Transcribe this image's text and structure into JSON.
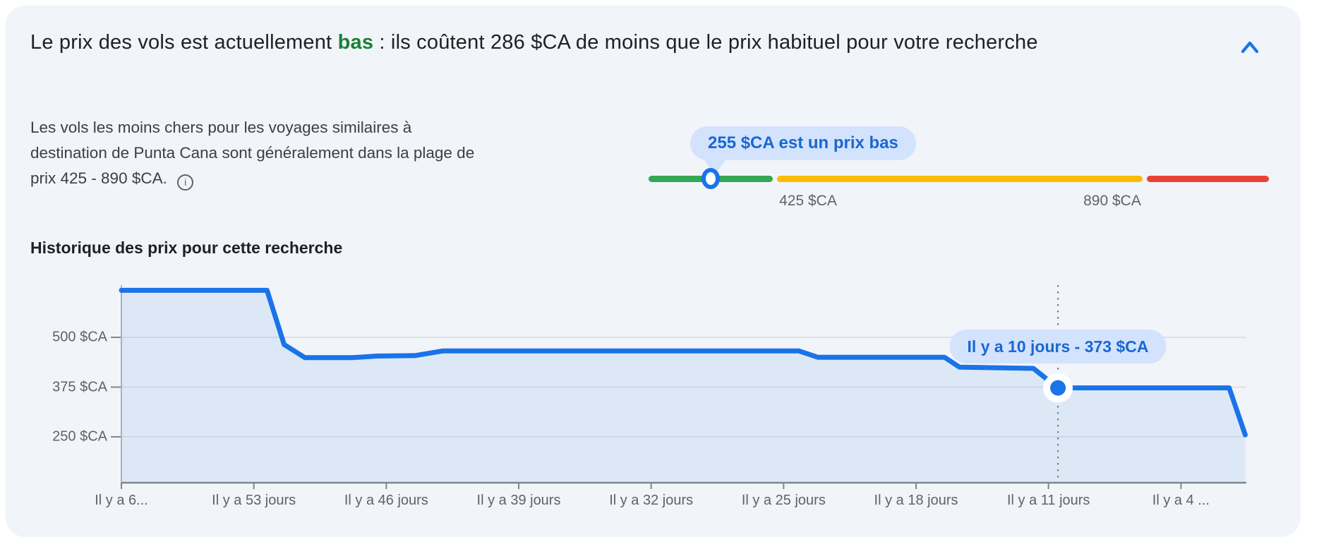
{
  "header": {
    "title_prefix": "Le prix des vols est actuellement ",
    "title_highlight": "bas",
    "title_suffix": " : ils coûtent 286 $CA de moins que le prix habituel pour votre recherche"
  },
  "summary": {
    "text": "Les vols les moins chers pour les voyages similaires à destination de Punta Cana sont généralement dans la plage de prix 425 - 890 $CA.",
    "info_icon": "info-icon"
  },
  "price_level_indicator": {
    "tooltip": "255 $CA est un prix bas",
    "low_label": "425 $CA",
    "high_label": "890 $CA",
    "segment_colors": {
      "low": "#34a853",
      "typical": "#fbbc04",
      "high": "#ea4335"
    },
    "marker_ring_color": "#1a73e8"
  },
  "history": {
    "title": "Historique des prix pour cette recherche"
  },
  "chart_data": {
    "type": "area",
    "title": "Historique des prix pour cette recherche",
    "x_unit": "days_ago",
    "x_tick_days": [
      60,
      53,
      46,
      39,
      32,
      25,
      18,
      11,
      4
    ],
    "x_tick_labels": [
      "Il y a 6...",
      "Il y a 53 jours",
      "Il y a 46 jours",
      "Il y a 39 jours",
      "Il y a 32 jours",
      "Il y a 25 jours",
      "Il y a 18 jours",
      "Il y a 11 jours",
      "Il y a 4 ..."
    ],
    "y_ticks": [
      500,
      375,
      250
    ],
    "y_tick_labels": [
      "500 $CA",
      "375 $CA",
      "250 $CA"
    ],
    "ylim": [
      135,
      640
    ],
    "points_days_ago_price": [
      [
        60,
        618
      ],
      [
        52.3,
        618
      ],
      [
        51.4,
        482
      ],
      [
        50.3,
        449
      ],
      [
        47.8,
        449
      ],
      [
        46.5,
        453
      ],
      [
        44.5,
        454
      ],
      [
        43,
        466
      ],
      [
        24.2,
        466
      ],
      [
        23.2,
        450
      ],
      [
        16.5,
        450
      ],
      [
        15.7,
        425
      ],
      [
        11.8,
        422
      ],
      [
        10.5,
        373
      ],
      [
        1.45,
        373
      ],
      [
        0.6,
        255
      ]
    ],
    "highlight_point": {
      "days_ago": 10.5,
      "price": 373,
      "tooltip": "Il y a 10 jours - 373 $CA"
    },
    "line_color": "#1a73e8",
    "fill_color": "rgba(26,115,232,0.09)",
    "grid": true,
    "legend": false
  }
}
